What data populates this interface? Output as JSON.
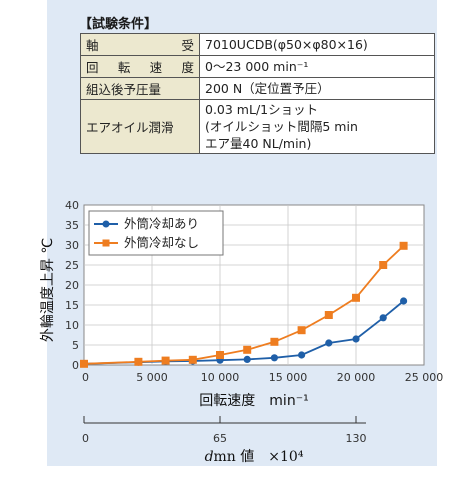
{
  "conditions": {
    "title": "【試験条件】",
    "rows": [
      {
        "key": "軸　　受",
        "key_parts": [
          "軸",
          "受"
        ],
        "value": "7010UCDB(φ50×φ80×16)"
      },
      {
        "key": "回 転 速 度",
        "key_parts": [
          "回",
          "転",
          "速",
          "度"
        ],
        "value": "0〜23 000 min⁻¹"
      },
      {
        "key": "組込後予圧量",
        "key_parts": [
          "組込後予圧量"
        ],
        "value": "200 N（定位置予圧）"
      },
      {
        "key": "エアオイル潤滑",
        "key_parts": [
          "エアオイル潤滑"
        ],
        "value_lines": [
          "0.03 mL/1ショット",
          "(オイルショット間隔5 min",
          "エア量40 NL/min)"
        ]
      }
    ]
  },
  "chart_data": {
    "type": "line",
    "ylabel": "外輪温度上昇 ℃",
    "xlabel": "回転速度　min⁻¹",
    "xlim": [
      0,
      25000
    ],
    "ylim": [
      0,
      40
    ],
    "x_ticks": [
      "0",
      "5 000",
      "10 000",
      "15 000",
      "20 000",
      "25 000"
    ],
    "y_ticks": [
      "0",
      "5",
      "10",
      "15",
      "20",
      "25",
      "30",
      "35",
      "40"
    ],
    "grid": true,
    "legend_position": "top-left",
    "series": [
      {
        "name": "外筒冷却あり",
        "color": "#1f5fa8",
        "marker": "circle",
        "x": [
          0,
          4000,
          6000,
          8000,
          10000,
          12000,
          14000,
          16000,
          18000,
          20000,
          22000,
          23500
        ],
        "y": [
          0.3,
          0.7,
          0.9,
          1.0,
          1.2,
          1.4,
          1.8,
          2.5,
          5.5,
          6.5,
          11.8,
          16.0
        ]
      },
      {
        "name": "外筒冷却なし",
        "color": "#ee7d20",
        "marker": "square",
        "x": [
          0,
          4000,
          6000,
          8000,
          10000,
          12000,
          14000,
          16000,
          18000,
          20000,
          22000,
          23500
        ],
        "y": [
          0.3,
          0.8,
          1.1,
          1.3,
          2.5,
          3.8,
          5.8,
          8.7,
          12.5,
          16.8,
          25.0,
          29.8
        ]
      }
    ],
    "secondary_axis": {
      "label_prefix": "d",
      "label_suffix": "mn 値　×10⁴",
      "ticks": [
        "0",
        "65",
        "130"
      ],
      "tick_rpm": [
        0,
        10000,
        20000
      ]
    }
  }
}
